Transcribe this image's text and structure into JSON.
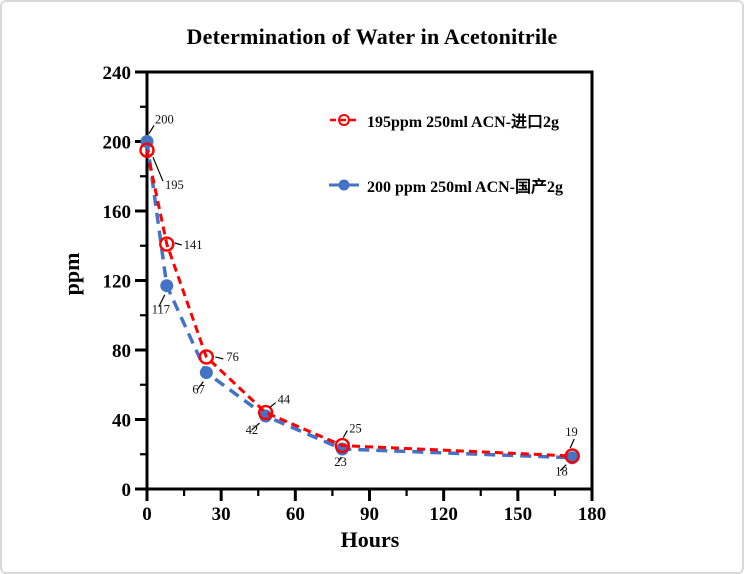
{
  "frame": {
    "background": "#ffffff",
    "border_color": "#d9d9d9"
  },
  "chart_data": {
    "type": "line",
    "title": "Determination of Water in Acetonitrile",
    "xlabel": "Hours",
    "ylabel": "ppm",
    "xlim": [
      0,
      180
    ],
    "ylim": [
      0,
      240
    ],
    "x_major_ticks": [
      0,
      30,
      60,
      90,
      120,
      150,
      180
    ],
    "x_minor_ticks": [
      15,
      45,
      75,
      105,
      135,
      165
    ],
    "y_major_ticks": [
      0,
      40,
      80,
      120,
      160,
      200,
      240
    ],
    "y_minor_ticks": [
      20,
      60,
      100,
      140,
      180,
      220
    ],
    "grid": false,
    "axis_color": "#000000",
    "legend_position": "inside-top-center",
    "series": [
      {
        "name": "195ppm  250ml ACN-进口2g",
        "color": "#ff0000",
        "line_style": "dashed",
        "marker": "open-circle",
        "x": [
          0,
          8,
          24,
          48,
          79,
          172
        ],
        "values": [
          195,
          141,
          76,
          44,
          25,
          19
        ],
        "point_labels": [
          "195",
          "141",
          "76",
          "44",
          "25",
          "19"
        ]
      },
      {
        "name": "200 ppm 250ml ACN-国产2g",
        "color": "#4472c4",
        "line_style": "dashed",
        "marker": "filled-circle",
        "x": [
          0,
          8,
          24,
          48,
          79,
          172
        ],
        "values": [
          200,
          117,
          67,
          42,
          23,
          18
        ],
        "point_labels": [
          "200",
          "117",
          "67",
          "42",
          "23",
          "18"
        ]
      }
    ]
  }
}
